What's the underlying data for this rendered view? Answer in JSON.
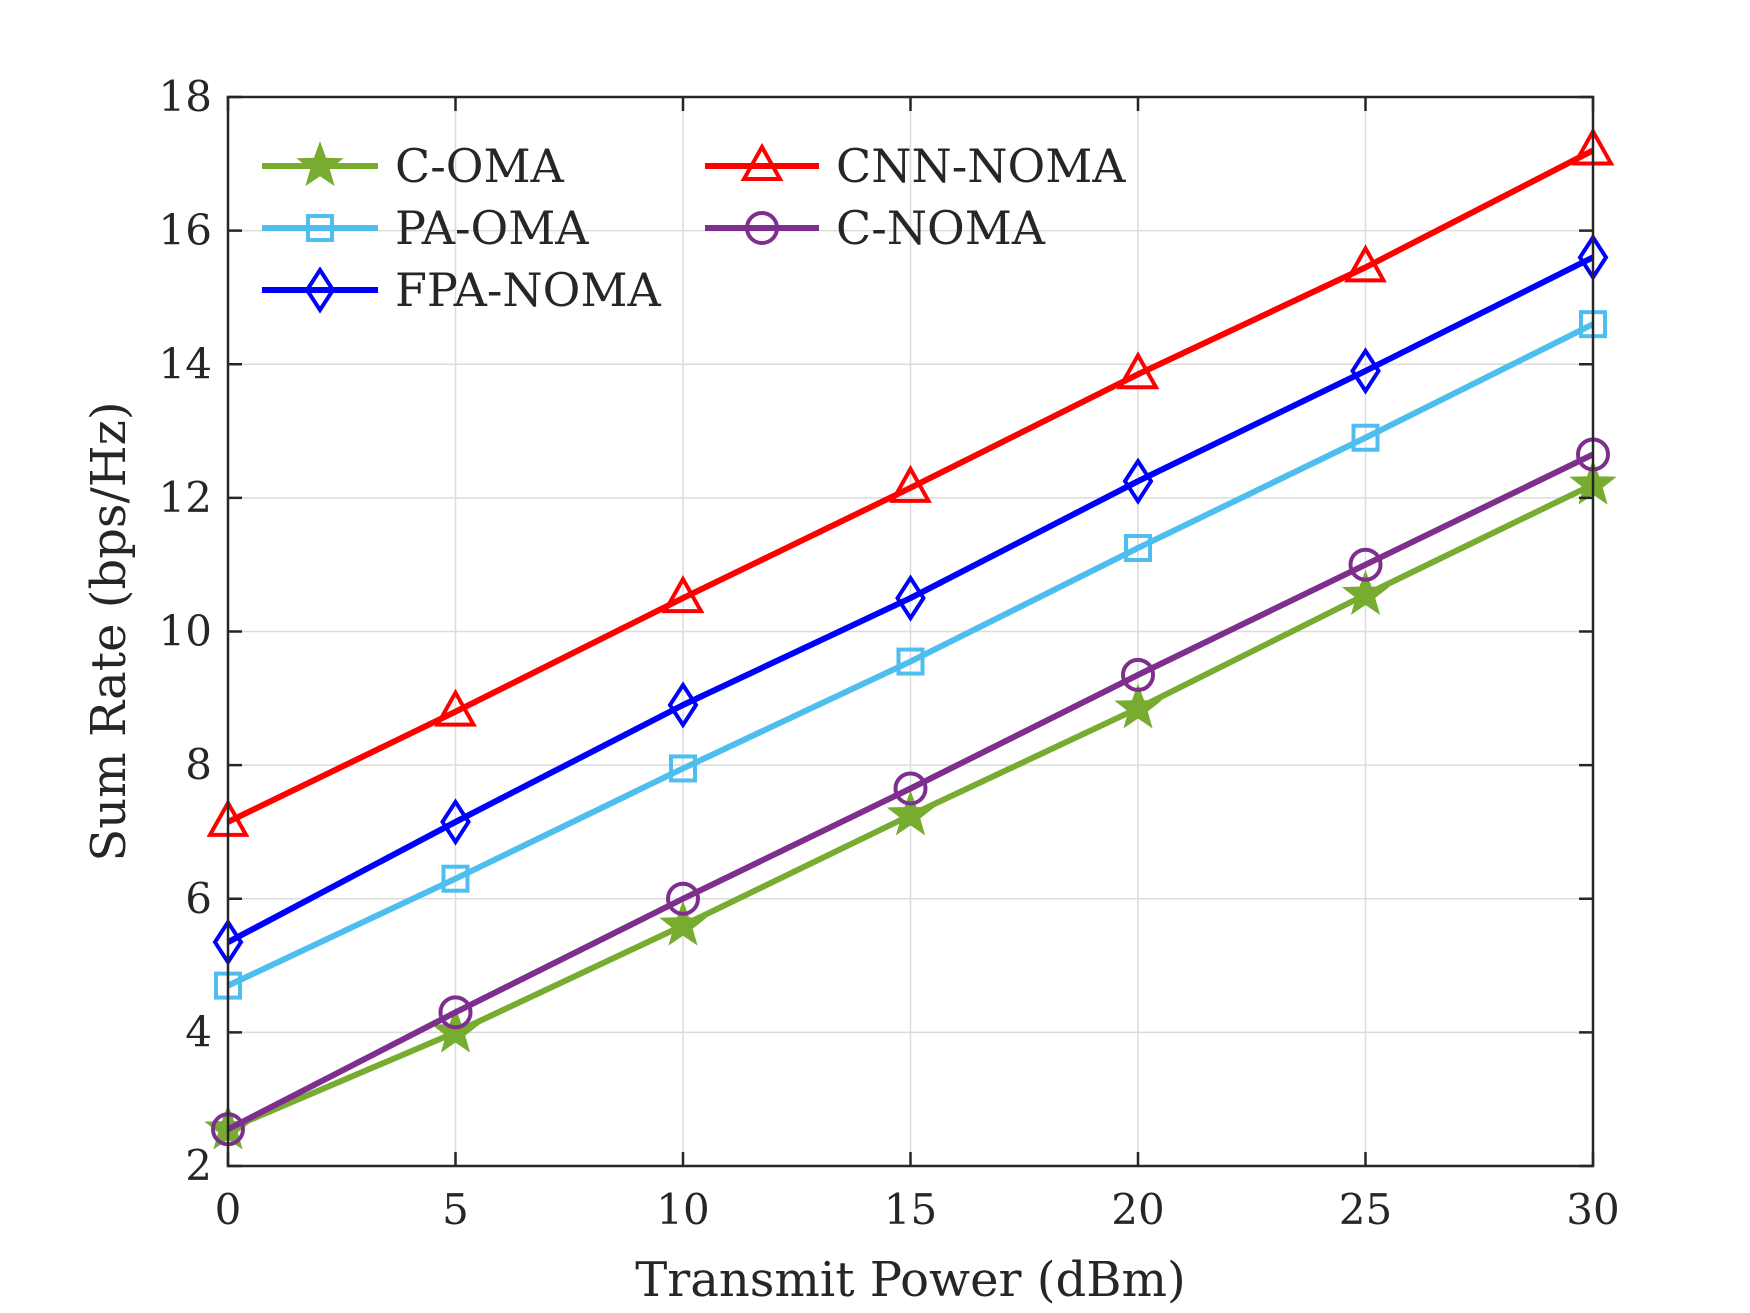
{
  "chart_data": {
    "type": "line",
    "title": "",
    "xlabel": "Transmit Power (dBm)",
    "ylabel": "Sum Rate (bps/Hz)",
    "x": [
      0,
      5,
      10,
      15,
      20,
      25,
      30
    ],
    "xlim": [
      0,
      30
    ],
    "ylim": [
      2,
      18
    ],
    "xticks": [
      0,
      5,
      10,
      15,
      20,
      25,
      30
    ],
    "yticks": [
      2,
      4,
      6,
      8,
      10,
      12,
      14,
      16,
      18
    ],
    "grid": true,
    "legend_position": "top-left",
    "series": [
      {
        "name": "C-OMA",
        "color": "#77AC30",
        "marker": "star",
        "values": [
          2.55,
          4.0,
          5.6,
          7.25,
          8.85,
          10.55,
          12.2
        ]
      },
      {
        "name": "PA-OMA",
        "color": "#4DBEEE",
        "marker": "square",
        "values": [
          4.7,
          6.3,
          7.95,
          9.55,
          11.25,
          12.9,
          14.6
        ]
      },
      {
        "name": "FPA-NOMA",
        "color": "#0000FF",
        "marker": "diamond",
        "values": [
          5.35,
          7.15,
          8.9,
          10.5,
          12.25,
          13.9,
          15.6
        ]
      },
      {
        "name": "CNN-NOMA",
        "color": "#FF0000",
        "marker": "triangle",
        "values": [
          7.15,
          8.8,
          10.5,
          12.15,
          13.85,
          15.45,
          17.2
        ]
      },
      {
        "name": "C-NOMA",
        "color": "#7E2F8E",
        "marker": "circle",
        "values": [
          2.55,
          4.3,
          6.0,
          7.65,
          9.35,
          11.0,
          12.65
        ]
      }
    ]
  }
}
